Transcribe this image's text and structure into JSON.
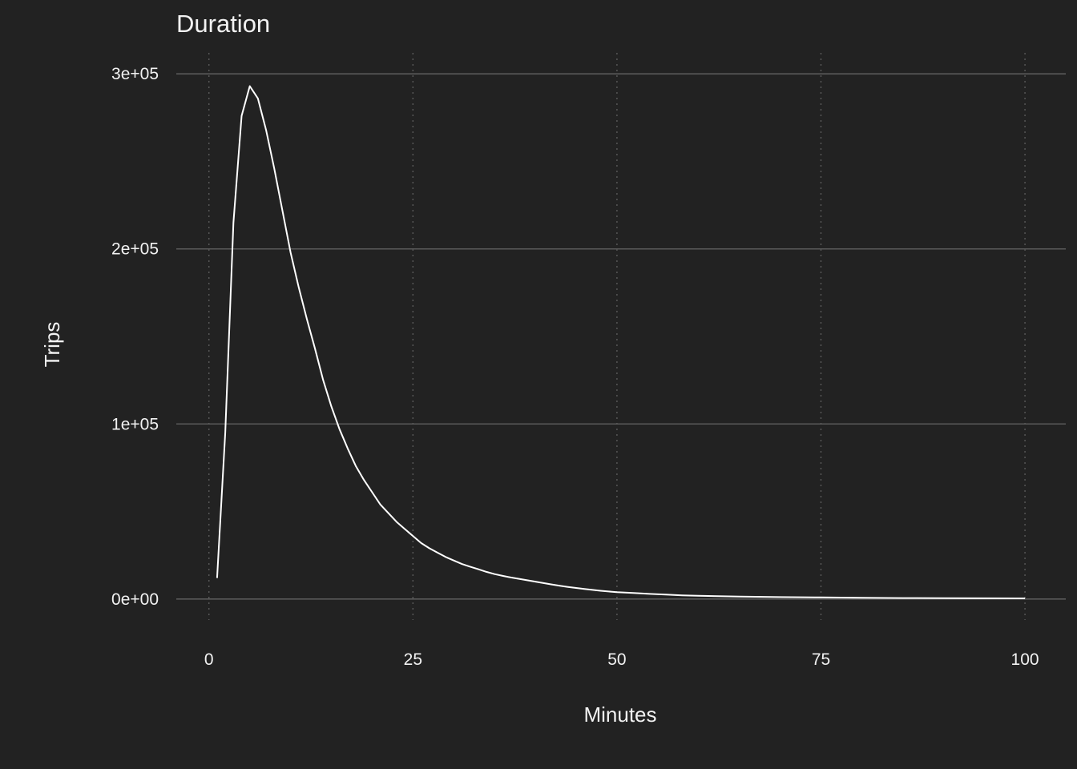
{
  "chart_data": {
    "type": "line",
    "title": "Duration",
    "xlabel": "Minutes",
    "ylabel": "Trips",
    "xlim": [
      -4,
      105
    ],
    "ylim": [
      -12000,
      312000
    ],
    "grid": true,
    "x_ticks": [
      0,
      25,
      50,
      75,
      100
    ],
    "x_tick_labels": [
      "0",
      "25",
      "50",
      "75",
      "100"
    ],
    "y_ticks": [
      0,
      100000,
      200000,
      300000
    ],
    "y_tick_labels": [
      "0e+00",
      "1e+05",
      "2e+05",
      "3e+05"
    ],
    "colors": {
      "background": "#222222",
      "line": "#ffffff",
      "grid": "#5a5a5a",
      "text": "#f2f2f2"
    },
    "series": [
      {
        "x": [
          1,
          2,
          3,
          4,
          5,
          6,
          7,
          8,
          9,
          10,
          11,
          12,
          13,
          14,
          15,
          16,
          17,
          18,
          19,
          20,
          21,
          22,
          23,
          24,
          25,
          26,
          27,
          28,
          29,
          30,
          31,
          32,
          33,
          34,
          35,
          36,
          37,
          38,
          39,
          40,
          41,
          42,
          43,
          44,
          45,
          46,
          47,
          48,
          49,
          50,
          52,
          54,
          56,
          58,
          60,
          65,
          70,
          75,
          80,
          85,
          90,
          95,
          100
        ],
        "values": [
          12000,
          95000,
          215000,
          276000,
          293000,
          286000,
          268000,
          246000,
          222000,
          198000,
          178000,
          160000,
          143000,
          125000,
          110000,
          97000,
          86000,
          76000,
          68000,
          61000,
          54000,
          49000,
          44000,
          40000,
          36000,
          32000,
          29000,
          26500,
          24000,
          22000,
          20000,
          18500,
          17000,
          15500,
          14200,
          13200,
          12300,
          11500,
          10700,
          9900,
          9100,
          8300,
          7600,
          6900,
          6300,
          5700,
          5200,
          4700,
          4300,
          3900,
          3400,
          2900,
          2500,
          2100,
          1800,
          1400,
          1100,
          900,
          700,
          550,
          450,
          400,
          350
        ]
      }
    ]
  }
}
